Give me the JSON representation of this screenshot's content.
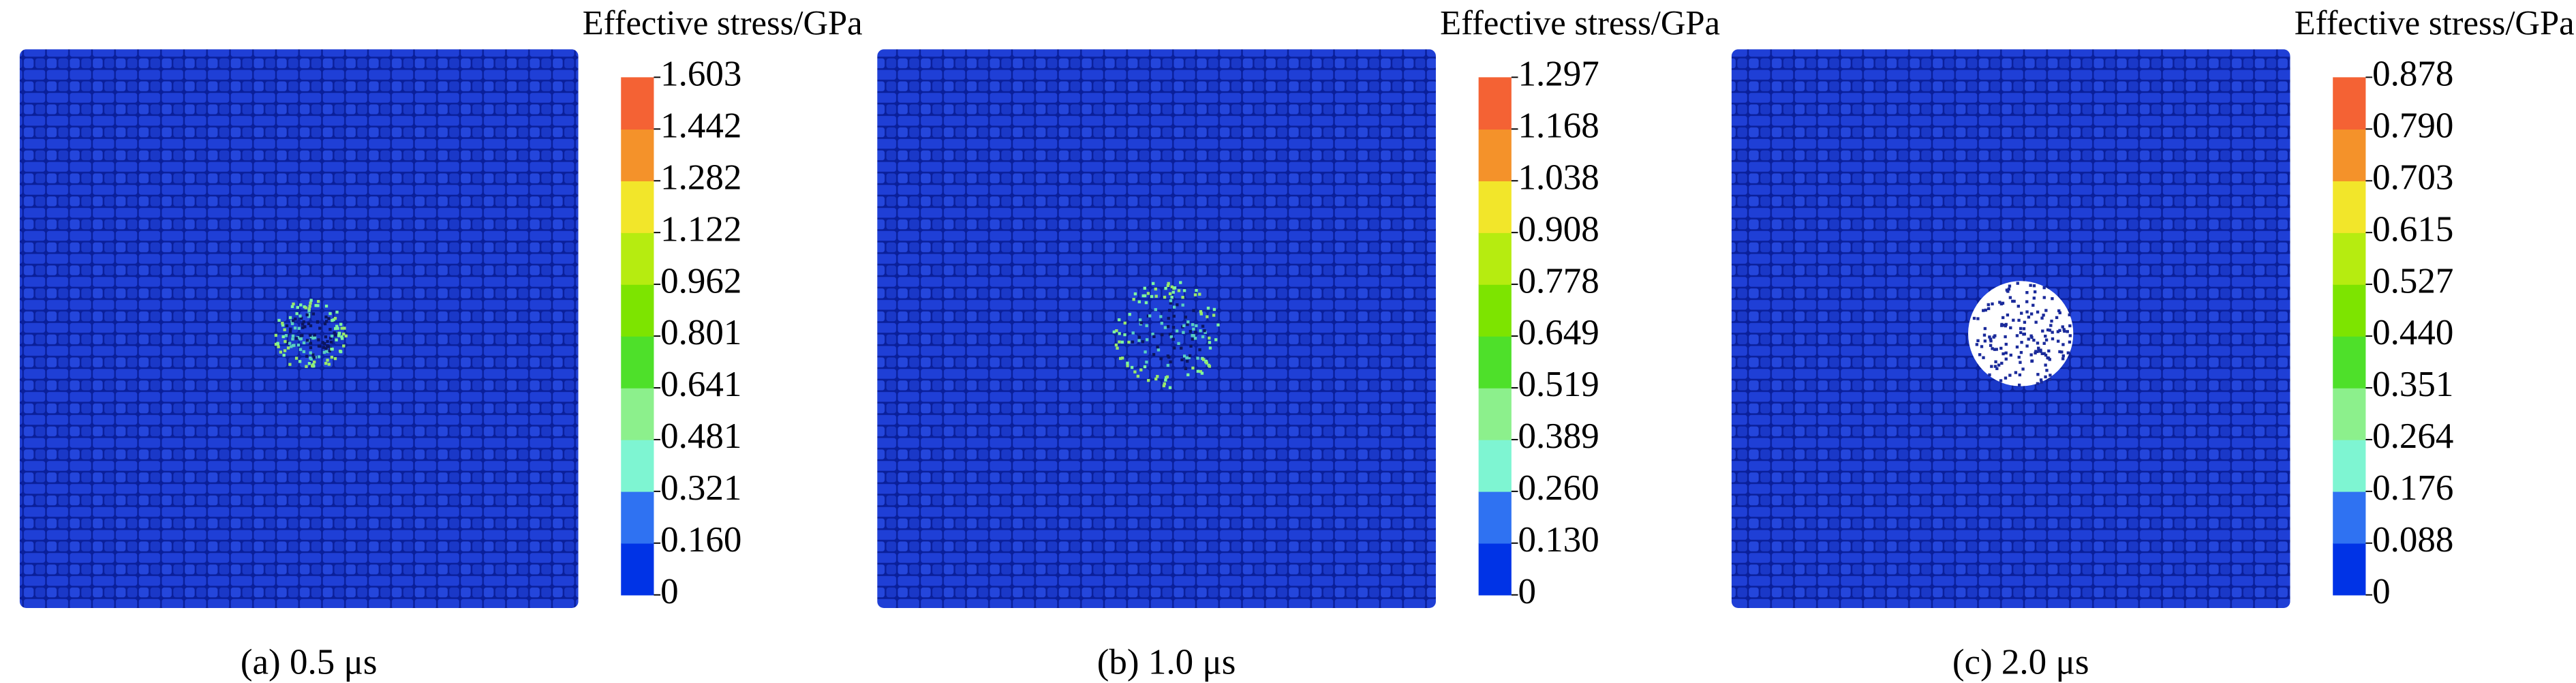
{
  "panels": [
    {
      "caption": "(a) 0.5 μs",
      "colorbar": {
        "title": "Effective stress/GPa",
        "ticks": [
          "0",
          "0.160",
          "0.321",
          "0.481",
          "0.641",
          "0.801",
          "0.962",
          "1.122",
          "1.282",
          "1.442",
          "1.603"
        ]
      }
    },
    {
      "caption": "(b) 1.0 μs",
      "colorbar": {
        "title": "Effective stress/GPa",
        "ticks": [
          "0",
          "0.130",
          "0.260",
          "0.389",
          "0.519",
          "0.649",
          "0.778",
          "0.908",
          "1.038",
          "1.168",
          "1.297"
        ]
      }
    },
    {
      "caption": "(c) 2.0 μs",
      "colorbar": {
        "title": "Effective stress/GPa",
        "ticks": [
          "0",
          "0.088",
          "0.176",
          "0.264",
          "0.351",
          "0.440",
          "0.527",
          "0.615",
          "0.703",
          "0.790",
          "0.878"
        ]
      }
    }
  ]
}
